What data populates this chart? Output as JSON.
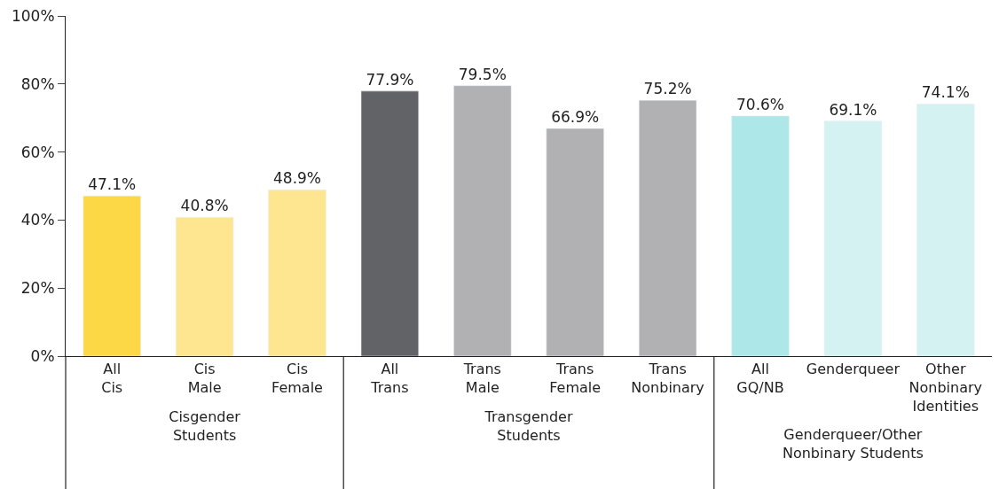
{
  "chart_data": [
    {
      "type": "bar",
      "xlabel": "Cisgender\nStudents",
      "categories": [
        "All\nCis",
        "Cis\nMale",
        "Cis\nFemale"
      ],
      "values": [
        47.1,
        40.8,
        48.9
      ],
      "colors": [
        "#fcd846",
        "#fde68f",
        "#fde68f"
      ],
      "value_labels": [
        "47.1%",
        "40.8%",
        "48.9%"
      ],
      "ylim": [
        0,
        100
      ],
      "yticks": [
        {
          "value": 0,
          "label": "0%"
        },
        {
          "value": 20,
          "label": "20%"
        },
        {
          "value": 40,
          "label": "40%"
        },
        {
          "value": 60,
          "label": "60%"
        },
        {
          "value": 80,
          "label": "80%"
        },
        {
          "value": 100,
          "label": "100%"
        }
      ]
    },
    {
      "type": "bar",
      "xlabel": "Transgender\nStudents",
      "categories": [
        "All\nTrans",
        "Trans\nMale",
        "Trans\nFemale",
        "Trans\nNonbinary"
      ],
      "values": [
        77.9,
        79.5,
        66.9,
        75.2
      ],
      "colors": [
        "#626366",
        "#b1b1b3",
        "#b1b1b3",
        "#b1b1b3"
      ],
      "value_labels": [
        "77.9%",
        "79.5%",
        "66.9%",
        "75.2%"
      ],
      "ylim": [
        0,
        100
      ],
      "tick_labels": "x"
    },
    {
      "type": "bar",
      "xlabel": "Genderqueer/Other\nNonbinary Students",
      "categories": [
        "All\nGQ/NB",
        "Genderqueer",
        "Other\nNonbinary\nIdentities"
      ],
      "values": [
        70.6,
        69.1,
        74.1
      ],
      "colors": [
        "#aee7e8",
        "#d5f2f2",
        "#d5f2f2"
      ],
      "value_labels": [
        "70.6%",
        "69.1%",
        "74.1%"
      ],
      "ylim": [
        0,
        100
      ],
      "tick_labels": "x"
    }
  ]
}
